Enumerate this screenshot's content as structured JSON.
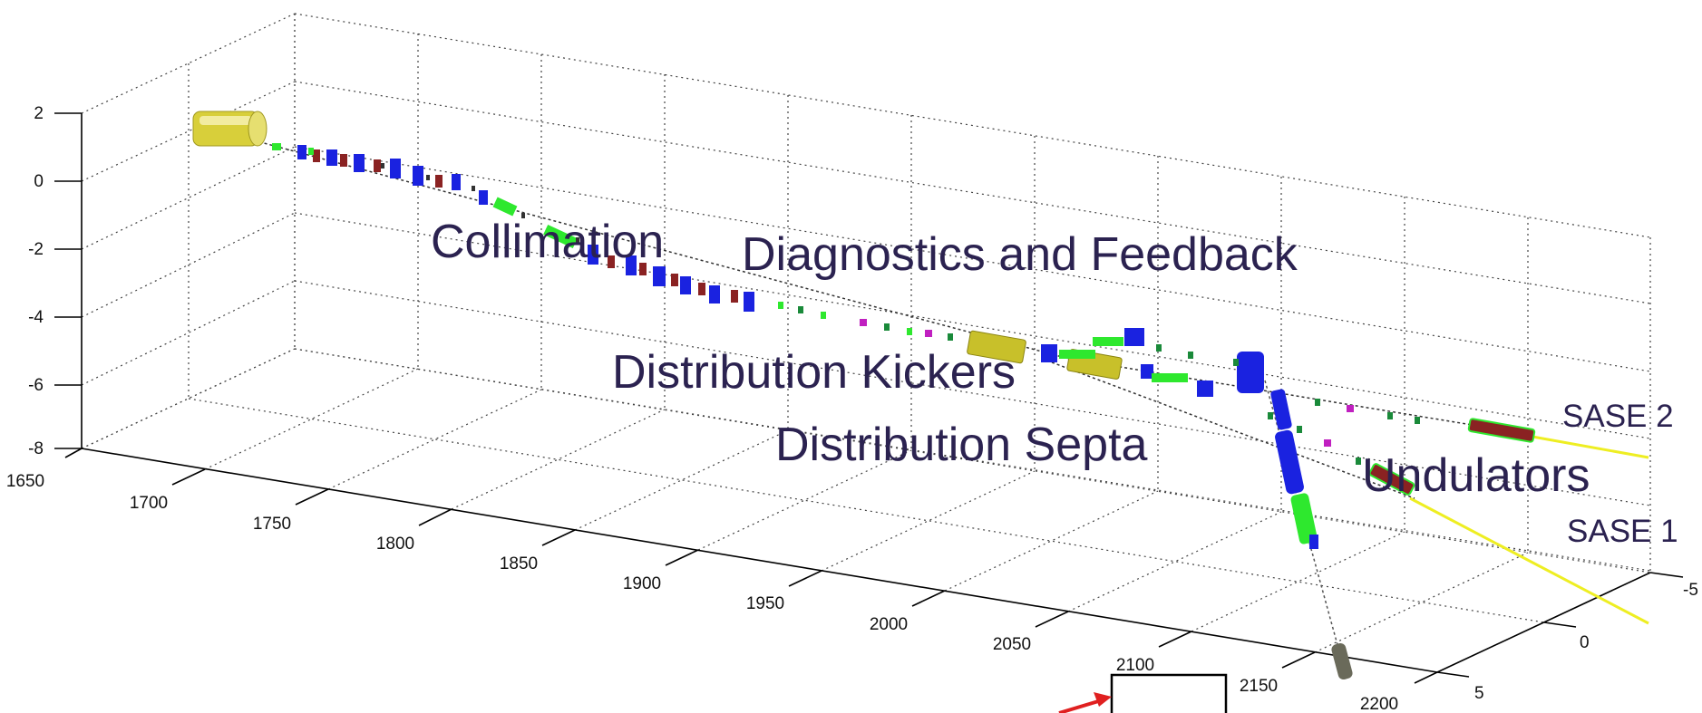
{
  "axes": {
    "x_ticks": [
      "1650",
      "1700",
      "1750",
      "1800",
      "1850",
      "1900",
      "1950",
      "2000",
      "2050",
      "2100",
      "2150",
      "2200"
    ],
    "y_ticks": [
      "-5",
      "0",
      "5"
    ],
    "z_ticks": [
      "2",
      "0",
      "-2",
      "-4",
      "-6",
      "-8"
    ]
  },
  "labels": {
    "collimation": "Collimation",
    "diagnostics": "Diagnostics and Feedback",
    "kickers": "Distribution Kickers",
    "septa": "Distribution Septa",
    "undulators": "Undulators",
    "sase2": "SASE 2",
    "sase1": "SASE 1"
  },
  "colors": {
    "label_text": "#2b2250",
    "cavity_yellow": "#d8cf3a",
    "quadrupole_blue": "#1a22e0",
    "corrector_green": "#2ee82e",
    "dipole_red": "#8a2222",
    "photon_line_yellow": "#eeee22",
    "dump_gray": "#6a6a5a",
    "inset_arrow_red": "#e02020"
  }
}
